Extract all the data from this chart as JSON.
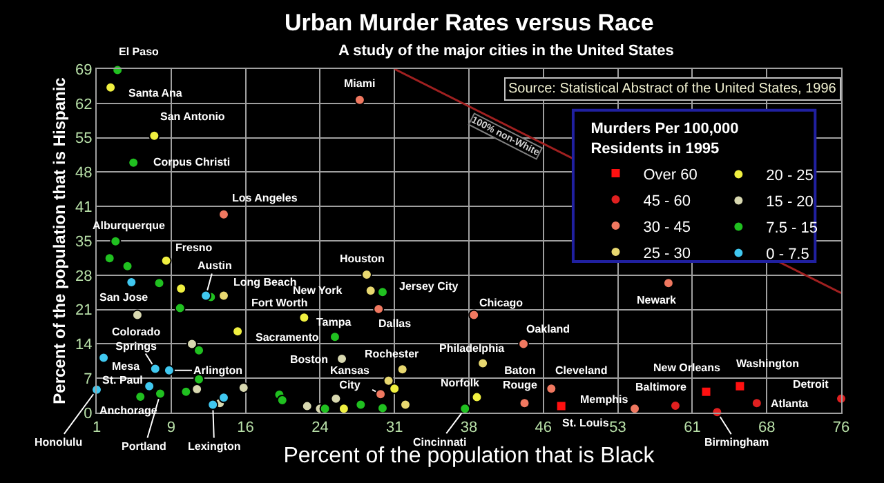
{
  "chart_data": {
    "type": "scatter",
    "title": "Urban Murder Rates versus Race",
    "subtitle": "A study of the major cities in the United States",
    "xlabel": "Percent of the population that is Black",
    "ylabel": "Percent of the population that is Hispanic",
    "legend_title": "Murders Per 100,000\nResidents in 1995",
    "legend": "top right",
    "grid": true,
    "marker": "circle",
    "xlim": [
      1,
      76
    ],
    "xticks": [
      1,
      {
        "value": 8.5,
        "label": "9"
      },
      16,
      {
        "value": 23.5,
        "label": "24"
      },
      31,
      {
        "value": 38.5,
        "label": "38"
      },
      46,
      {
        "value": 53.5,
        "label": "53"
      },
      61,
      {
        "value": 68.5,
        "label": "68"
      },
      76
    ],
    "ylim": [
      0,
      69
    ],
    "yticks": [
      0,
      {
        "value": 6.9,
        "label": "7"
      },
      {
        "value": 13.8,
        "label": "14"
      },
      {
        "value": 20.7,
        "label": "21"
      },
      {
        "value": 27.6,
        "label": "28"
      },
      {
        "value": 34.5,
        "label": "35"
      },
      {
        "value": 41.4,
        "label": "41"
      },
      {
        "value": 48.3,
        "label": "48"
      },
      {
        "value": 55.2,
        "label": "55"
      },
      {
        "value": 62.1,
        "label": "62"
      },
      69
    ],
    "series": [
      {
        "name": "Over 60",
        "color": "#ff1010",
        "marker": "square",
        "x": [
          47.8,
          62.4,
          65.8
        ],
        "values": [
          1.3,
          4.2,
          5.3
        ]
      },
      {
        "name": "45 - 60",
        "color": "#e02020",
        "x": [
          59.3,
          67.5,
          63.5,
          76.0
        ],
        "values": [
          1.4,
          1.9,
          0.1,
          2.8
        ]
      },
      {
        "name": "30 - 45",
        "color": "#f07860",
        "x": [
          27.5,
          13.8,
          29.4,
          39.0,
          44.0,
          58.6,
          44.1,
          46.8,
          55.2,
          29.6
        ],
        "values": [
          62.8,
          39.8,
          20.8,
          19.6,
          13.8,
          26.0,
          1.9,
          4.8,
          0.8,
          3.7
        ]
      },
      {
        "name": "25 - 30",
        "color": "#e8d870",
        "x": [
          13.8,
          28.2,
          28.6,
          39.9,
          31.8,
          30.4,
          32.1
        ],
        "values": [
          23.5,
          27.7,
          24.5,
          9.9,
          8.7,
          6.4,
          1.6
        ]
      },
      {
        "name": "20 - 25",
        "color": "#f0f040",
        "x": [
          2.4,
          6.8,
          8.0,
          9.5,
          15.2,
          21.9,
          39.3,
          31.0,
          25.9
        ],
        "values": [
          65.3,
          55.6,
          30.5,
          24.9,
          16.3,
          19.1,
          3.1,
          4.8,
          0.8
        ]
      },
      {
        "name": "15 - 20",
        "color": "#d8d8b0",
        "x": [
          5.1,
          10.6,
          25.7,
          25.1,
          22.2,
          23.5,
          11.1,
          13.4,
          15.8
        ],
        "values": [
          19.6,
          13.8,
          10.8,
          2.8,
          1.3,
          0.8,
          4.7,
          1.9,
          5.0
        ]
      },
      {
        "name": "7.5 - 15",
        "color": "#20c020",
        "x": [
          3.1,
          4.7,
          2.9,
          2.3,
          4.1,
          7.3,
          9.4,
          12.5,
          11.3,
          11.3,
          10.0,
          5.4,
          7.4,
          19.4,
          19.7,
          25.0,
          29.8,
          27.6,
          29.8,
          24.0,
          38.1
        ],
        "values": [
          68.8,
          50.2,
          34.4,
          31.0,
          29.4,
          26.0,
          21.0,
          23.2,
          12.5,
          6.7,
          4.2,
          3.2,
          3.8,
          3.6,
          2.5,
          15.2,
          24.2,
          1.6,
          0.9,
          0.8,
          0.8
        ]
      },
      {
        "name": "0 - 7.5",
        "color": "#40c8f0",
        "x": [
          4.5,
          12.0,
          1.7,
          6.9,
          8.3,
          6.3,
          1.0,
          12.7,
          13.8
        ],
        "values": [
          26.2,
          23.5,
          11.0,
          8.8,
          8.5,
          5.3,
          4.6,
          1.6,
          3.0
        ]
      },
      {
        "name": "100% non-White",
        "type": "line",
        "marker": "none",
        "color": "#a02020",
        "x": [
          31,
          76
        ],
        "values": [
          69,
          24
        ]
      }
    ],
    "annotations": [
      {
        "text": "El Paso",
        "x": 3.1,
        "y": 68.8
      },
      {
        "text": "Santa Ana",
        "x": 2.4,
        "y": 65.3
      },
      {
        "text": "San Antonio",
        "x": 6.8,
        "y": 55.6
      },
      {
        "text": "Corpus Christi",
        "x": 4.7,
        "y": 50.2
      },
      {
        "text": "Los Angeles",
        "x": 13.8,
        "y": 39.8
      },
      {
        "text": "Alburquerque",
        "x": 2.9,
        "y": 34.4
      },
      {
        "text": "Fresno",
        "x": 8.0,
        "y": 30.5
      },
      {
        "text": "Austin",
        "x": 12.0,
        "y": 23.5
      },
      {
        "text": "Long Beach",
        "x": 13.8,
        "y": 23.5
      },
      {
        "text": "San Jose",
        "x": 4.5,
        "y": 26.2
      },
      {
        "text": "Fort Worth",
        "x": 21.9,
        "y": 19.1
      },
      {
        "text": "Sacramento",
        "x": 15.2,
        "y": 16.3
      },
      {
        "text": "Colorado\nSprings",
        "x": 6.9,
        "y": 8.8
      },
      {
        "text": "Mesa",
        "x": 1.7,
        "y": 11.0
      },
      {
        "text": "Arlington",
        "x": 8.3,
        "y": 8.5
      },
      {
        "text": "St. Paul",
        "x": 6.3,
        "y": 5.3
      },
      {
        "text": "Anchorage",
        "x": 5.4,
        "y": 3.2
      },
      {
        "text": "Honolulu",
        "x": 1.0,
        "y": 4.6
      },
      {
        "text": "Portland",
        "x": 7.4,
        "y": 3.8
      },
      {
        "text": "Lexington",
        "x": 12.7,
        "y": 1.6
      },
      {
        "text": "Miami",
        "x": 27.5,
        "y": 62.8
      },
      {
        "text": "Houston",
        "x": 28.2,
        "y": 27.7
      },
      {
        "text": "New York",
        "x": 28.6,
        "y": 24.5
      },
      {
        "text": "Jersey City",
        "x": 29.8,
        "y": 24.2
      },
      {
        "text": "Dallas",
        "x": 29.4,
        "y": 20.8
      },
      {
        "text": "Tampa",
        "x": 25.0,
        "y": 15.2
      },
      {
        "text": "Boston",
        "x": 25.7,
        "y": 10.8
      },
      {
        "text": "Rochester",
        "x": 31.8,
        "y": 8.7
      },
      {
        "text": "Kansas\nCity",
        "x": 29.6,
        "y": 3.7
      },
      {
        "text": "Philadelphia",
        "x": 39.9,
        "y": 9.9
      },
      {
        "text": "Chicago",
        "x": 39.0,
        "y": 19.6
      },
      {
        "text": "Oakland",
        "x": 44.0,
        "y": 13.8
      },
      {
        "text": "Norfolk",
        "x": 39.3,
        "y": 3.1
      },
      {
        "text": "Cincinnati",
        "x": 38.1,
        "y": 0.8
      },
      {
        "text": "Baton\nRouge",
        "x": 44.1,
        "y": 1.9
      },
      {
        "text": "Cleveland",
        "x": 46.8,
        "y": 4.8
      },
      {
        "text": "St. Louis",
        "x": 47.8,
        "y": 1.3
      },
      {
        "text": "Memphis",
        "x": 55.2,
        "y": 0.8
      },
      {
        "text": "Baltimore",
        "x": 59.3,
        "y": 1.4
      },
      {
        "text": "New Orleans",
        "x": 62.4,
        "y": 4.2
      },
      {
        "text": "Washington",
        "x": 65.8,
        "y": 5.3
      },
      {
        "text": "Atlanta",
        "x": 67.5,
        "y": 1.9
      },
      {
        "text": "Detroit",
        "x": 76.0,
        "y": 2.8
      },
      {
        "text": "Birmingham",
        "x": 63.5,
        "y": 0.1
      },
      {
        "text": "Newark",
        "x": 58.6,
        "y": 26.0
      },
      "Source: Statistical Abstract of the United States, 1996"
    ]
  }
}
